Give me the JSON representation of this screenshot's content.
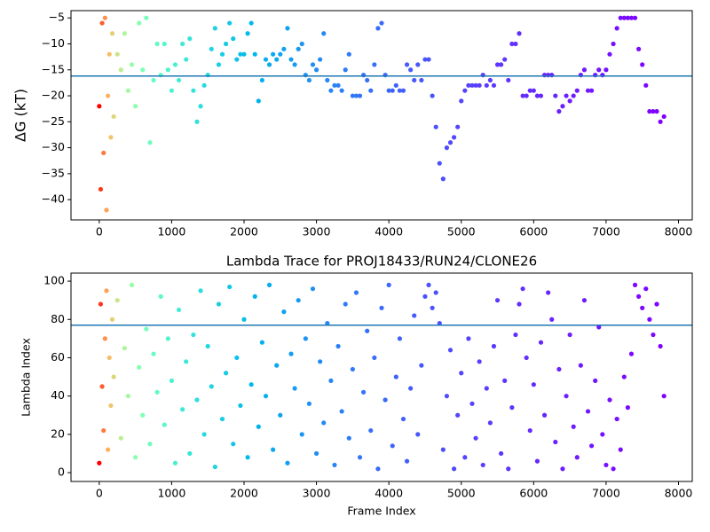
{
  "chart_data": [
    {
      "type": "scatter",
      "ylabel": "ΔG (kT)",
      "colormap": "rainbow_r",
      "hline": -16.2,
      "hline_color": "#1f77b4",
      "xlim": [
        -390,
        8190
      ],
      "ylim": [
        -43.9,
        -3.6
      ],
      "xticks": [
        0,
        1000,
        2000,
        3000,
        4000,
        5000,
        6000,
        7000,
        8000
      ],
      "yticks": [
        {
          "value": -40,
          "label": "−40"
        },
        {
          "value": -35,
          "label": "−35"
        },
        {
          "value": -30,
          "label": "−30"
        },
        {
          "value": -25,
          "label": "−25"
        },
        {
          "value": -20,
          "label": "−20"
        },
        {
          "value": -15,
          "label": "−15"
        },
        {
          "value": -10,
          "label": "−10"
        },
        {
          "value": -5,
          "label": "−5"
        }
      ],
      "x": [
        0,
        20,
        40,
        60,
        80,
        100,
        120,
        140,
        160,
        180,
        200,
        250,
        300,
        350,
        400,
        450,
        500,
        550,
        600,
        650,
        700,
        750,
        800,
        850,
        900,
        950,
        1000,
        1050,
        1100,
        1150,
        1200,
        1250,
        1300,
        1350,
        1400,
        1450,
        1500,
        1550,
        1600,
        1650,
        1700,
        1750,
        1800,
        1850,
        1900,
        1950,
        2000,
        2050,
        2100,
        2150,
        2200,
        2250,
        2300,
        2350,
        2400,
        2450,
        2500,
        2550,
        2600,
        2650,
        2700,
        2750,
        2800,
        2850,
        2900,
        2950,
        3000,
        3050,
        3100,
        3150,
        3200,
        3250,
        3300,
        3350,
        3400,
        3450,
        3500,
        3550,
        3600,
        3650,
        3700,
        3750,
        3800,
        3850,
        3900,
        3950,
        4000,
        4050,
        4100,
        4150,
        4200,
        4250,
        4300,
        4350,
        4400,
        4450,
        4500,
        4550,
        4600,
        4650,
        4700,
        4750,
        4800,
        4850,
        4900,
        4950,
        5000,
        5050,
        5100,
        5150,
        5200,
        5250,
        5300,
        5350,
        5400,
        5450,
        5500,
        5550,
        5600,
        5650,
        5700,
        5750,
        5800,
        5850,
        5900,
        5950,
        6000,
        6050,
        6100,
        6150,
        6200,
        6250,
        6300,
        6350,
        6400,
        6450,
        6500,
        6550,
        6600,
        6650,
        6700,
        6750,
        6800,
        6850,
        6900,
        6950,
        7000,
        7050,
        7100,
        7150,
        7200,
        7250,
        7300,
        7350,
        7400,
        7450,
        7500,
        7550,
        7600,
        7650,
        7700,
        7750,
        7800
      ],
      "values": [
        -22,
        -38,
        -6,
        -31,
        -5,
        -42,
        -20,
        -12,
        -28,
        -8,
        -24,
        -12,
        -15,
        -8,
        -19,
        -14,
        -22,
        -6,
        -15,
        -5,
        -29,
        -17,
        -10,
        -16,
        -10,
        -15,
        -19,
        -14,
        -17,
        -10,
        -13,
        -9,
        -19,
        -25,
        -22,
        -18,
        -16,
        -11,
        -7,
        -14,
        -12,
        -10,
        -6,
        -9,
        -13,
        -12,
        -12,
        -8,
        -6,
        -12,
        -21,
        -17,
        -13,
        -14,
        -12,
        -13,
        -12,
        -11,
        -7,
        -13,
        -14,
        -11,
        -10,
        -16,
        -17,
        -14,
        -15,
        -13,
        -8,
        -17,
        -19,
        -18,
        -18,
        -19,
        -15,
        -12,
        -20,
        -20,
        -20,
        -16,
        -17,
        -19,
        -14,
        -7,
        -6,
        -16,
        -19,
        -19,
        -18,
        -19,
        -19,
        -14,
        -15,
        -17,
        -14,
        -17,
        -13,
        -13,
        -20,
        -26,
        -33,
        -36,
        -30,
        -29,
        -28,
        -26,
        -21,
        -19,
        -18,
        -18,
        -18,
        -18,
        -16,
        -18,
        -17,
        -18,
        -14,
        -14,
        -13,
        -17,
        -10,
        -10,
        -8,
        -20,
        -20,
        -19,
        -19,
        -20,
        -20,
        -16,
        -16,
        -16,
        -20,
        -23,
        -22,
        -20,
        -21,
        -20,
        -19,
        -16,
        -15,
        -19,
        -19,
        -16,
        -15,
        -16,
        -15,
        -12,
        -10,
        -7,
        -5,
        -5,
        -5,
        -5,
        -5,
        -11,
        -14,
        -18,
        -23,
        -23,
        -23,
        -25,
        -24
      ]
    },
    {
      "type": "scatter",
      "title": "Lambda Trace for PROJ18433/RUN24/CLONE26",
      "xlabel": "Frame Index",
      "ylabel": "Lambda Index",
      "colormap": "rainbow_r",
      "hline": 77,
      "hline_color": "#1f77b4",
      "xlim": [
        -390,
        8190
      ],
      "ylim": [
        -4.6,
        104.2
      ],
      "xticks": [
        0,
        1000,
        2000,
        3000,
        4000,
        5000,
        6000,
        7000,
        8000
      ],
      "yticks": [
        0,
        20,
        40,
        60,
        80,
        100
      ],
      "x": [
        0,
        20,
        40,
        60,
        80,
        100,
        120,
        140,
        160,
        180,
        200,
        250,
        300,
        350,
        400,
        450,
        500,
        550,
        600,
        650,
        700,
        750,
        800,
        850,
        900,
        950,
        1000,
        1050,
        1100,
        1150,
        1200,
        1250,
        1300,
        1350,
        1400,
        1450,
        1500,
        1550,
        1600,
        1650,
        1700,
        1750,
        1800,
        1850,
        1900,
        1950,
        2000,
        2050,
        2100,
        2150,
        2200,
        2250,
        2300,
        2350,
        2400,
        2450,
        2500,
        2550,
        2600,
        2650,
        2700,
        2750,
        2800,
        2850,
        2900,
        2950,
        3000,
        3050,
        3100,
        3150,
        3200,
        3250,
        3300,
        3350,
        3400,
        3450,
        3500,
        3550,
        3600,
        3650,
        3700,
        3750,
        3800,
        3850,
        3900,
        3950,
        4000,
        4050,
        4100,
        4150,
        4200,
        4250,
        4300,
        4350,
        4400,
        4450,
        4500,
        4550,
        4600,
        4650,
        4700,
        4750,
        4800,
        4850,
        4900,
        4950,
        5000,
        5050,
        5100,
        5150,
        5200,
        5250,
        5300,
        5350,
        5400,
        5450,
        5500,
        5550,
        5600,
        5650,
        5700,
        5750,
        5800,
        5850,
        5900,
        5950,
        6000,
        6050,
        6100,
        6150,
        6200,
        6250,
        6300,
        6350,
        6400,
        6450,
        6500,
        6550,
        6600,
        6650,
        6700,
        6750,
        6800,
        6850,
        6900,
        6950,
        7000,
        7050,
        7100,
        7150,
        7200,
        7250,
        7300,
        7350,
        7400,
        7450,
        7500,
        7550,
        7600,
        7650,
        7700,
        7750,
        7800
      ],
      "values": [
        5,
        88,
        45,
        22,
        70,
        95,
        12,
        60,
        35,
        80,
        50,
        90,
        18,
        65,
        40,
        98,
        8,
        55,
        30,
        75,
        15,
        62,
        42,
        92,
        25,
        70,
        48,
        5,
        85,
        33,
        58,
        10,
        72,
        38,
        95,
        20,
        66,
        45,
        3,
        88,
        28,
        52,
        97,
        15,
        60,
        35,
        80,
        8,
        46,
        92,
        24,
        68,
        40,
        98,
        12,
        56,
        30,
        84,
        5,
        62,
        44,
        90,
        20,
        70,
        36,
        96,
        10,
        58,
        26,
        78,
        48,
        4,
        66,
        32,
        88,
        18,
        54,
        94,
        8,
        42,
        74,
        22,
        60,
        2,
        86,
        38,
        98,
        14,
        50,
        70,
        28,
        6,
        44,
        82,
        20,
        56,
        92,
        98,
        86,
        94,
        78,
        12,
        40,
        64,
        2,
        30,
        52,
        8,
        70,
        36,
        18,
        58,
        4,
        44,
        26,
        66,
        90,
        10,
        48,
        2,
        34,
        72,
        88,
        96,
        60,
        22,
        46,
        6,
        68,
        30,
        94,
        80,
        16,
        54,
        2,
        40,
        72,
        24,
        8,
        56,
        90,
        32,
        14,
        48,
        76,
        20,
        4,
        38,
        2,
        28,
        12,
        50,
        34,
        62,
        98,
        92,
        86,
        96,
        80,
        72,
        88,
        66,
        40
      ]
    }
  ]
}
